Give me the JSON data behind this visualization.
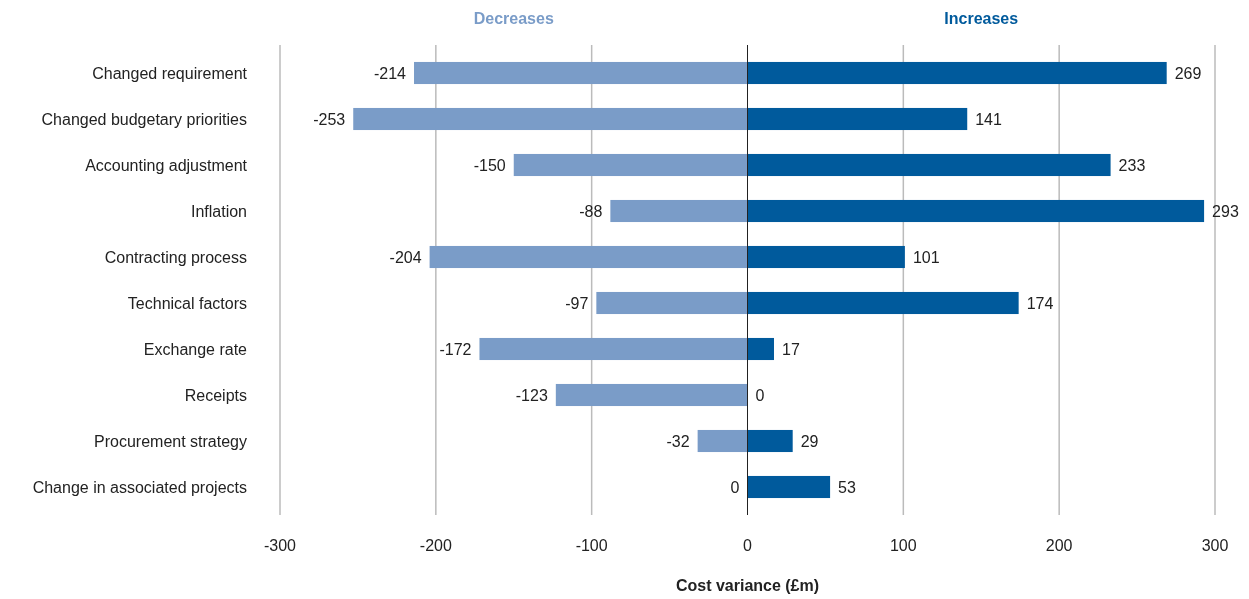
{
  "chart_data": {
    "type": "bar",
    "orientation": "horizontal",
    "stacked": true,
    "xlabel": "Cost variance (£m)",
    "categories": [
      "Changed requirement",
      "Changed budgetary priorities",
      "Accounting adjustment",
      "Inflation",
      "Contracting process",
      "Technical factors",
      "Exchange rate",
      "Receipts",
      "Procurement strategy",
      "Change in associated projects"
    ],
    "series": [
      {
        "name": "Decreases",
        "color": "#7a9cc8",
        "values": [
          -214,
          -253,
          -150,
          -88,
          -204,
          -97,
          -172,
          -123,
          -32,
          null
        ]
      },
      {
        "name": "Increases",
        "color": "#005a9c",
        "values": [
          269,
          141,
          233,
          293,
          101,
          174,
          17,
          0,
          29,
          53
        ]
      }
    ],
    "xlim": [
      -300,
      300
    ],
    "xticks": [
      -300,
      -200,
      -100,
      0,
      100,
      200,
      300
    ],
    "annotations": [
      {
        "text": "0",
        "x": 0,
        "y": "Change in associated projects"
      }
    ],
    "grid": "x",
    "legend": "top",
    "data_labels": true
  }
}
